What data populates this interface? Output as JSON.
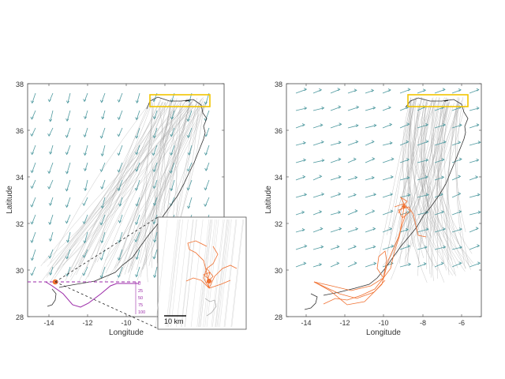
{
  "colors": {
    "tracks": "#9a9a9a",
    "vectors": "#4f9aa0",
    "coast": "#333333",
    "release_box": "#f2c500",
    "bird_tracks": "#f07030",
    "depth_profile": "#9b2aa8"
  },
  "left_panel": {
    "xlabel": "Longitude",
    "ylabel": "Latitude",
    "x_ticks": [
      "-14",
      "-12",
      "-10"
    ],
    "y_ticks": [
      "38",
      "36",
      "34",
      "32",
      "30",
      "28"
    ],
    "depth_ticks": [
      "0",
      "25",
      "50",
      "75",
      "100"
    ],
    "inset_scale_label": "10 km"
  },
  "right_panel": {
    "xlabel": "Longitude",
    "ylabel": "Latitude",
    "x_ticks": [
      "-14",
      "-12",
      "-10",
      "-8",
      "-6"
    ],
    "y_ticks": [
      "38",
      "36",
      "34",
      "32",
      "30",
      "28"
    ]
  }
}
